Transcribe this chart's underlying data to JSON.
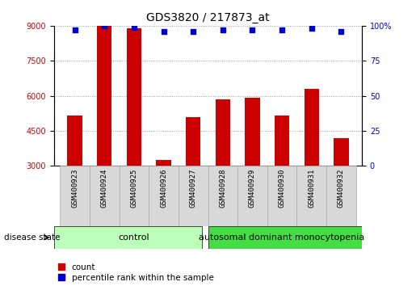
{
  "title": "GDS3820 / 217873_at",
  "samples": [
    "GSM400923",
    "GSM400924",
    "GSM400925",
    "GSM400926",
    "GSM400927",
    "GSM400928",
    "GSM400929",
    "GSM400930",
    "GSM400931",
    "GSM400932"
  ],
  "counts": [
    5150,
    9000,
    8900,
    3250,
    5100,
    5850,
    5900,
    5150,
    6300,
    4200
  ],
  "percentiles": [
    97,
    100,
    99,
    96,
    96,
    97,
    97,
    97,
    98,
    96
  ],
  "ymin": 3000,
  "ymax": 9000,
  "yticks": [
    3000,
    4500,
    6000,
    7500,
    9000
  ],
  "right_yticks": [
    0,
    25,
    50,
    75,
    100
  ],
  "bar_color": "#cc0000",
  "dot_color": "#0000cc",
  "n_control": 5,
  "n_disease": 5,
  "control_label": "control",
  "disease_label": "autosomal dominant monocytopenia",
  "control_color": "#bbffbb",
  "disease_color": "#44dd44",
  "bar_width": 0.5,
  "tick_label_fontsize": 7,
  "title_fontsize": 10,
  "legend_fontsize": 7.5,
  "group_label_fontsize": 8,
  "disease_state_fontsize": 7.5,
  "sample_label_fontsize": 6.5,
  "grid_style": "dotted",
  "grid_color": "#888888",
  "sample_box_color": "#d8d8d8",
  "sample_box_edge": "#aaaaaa"
}
